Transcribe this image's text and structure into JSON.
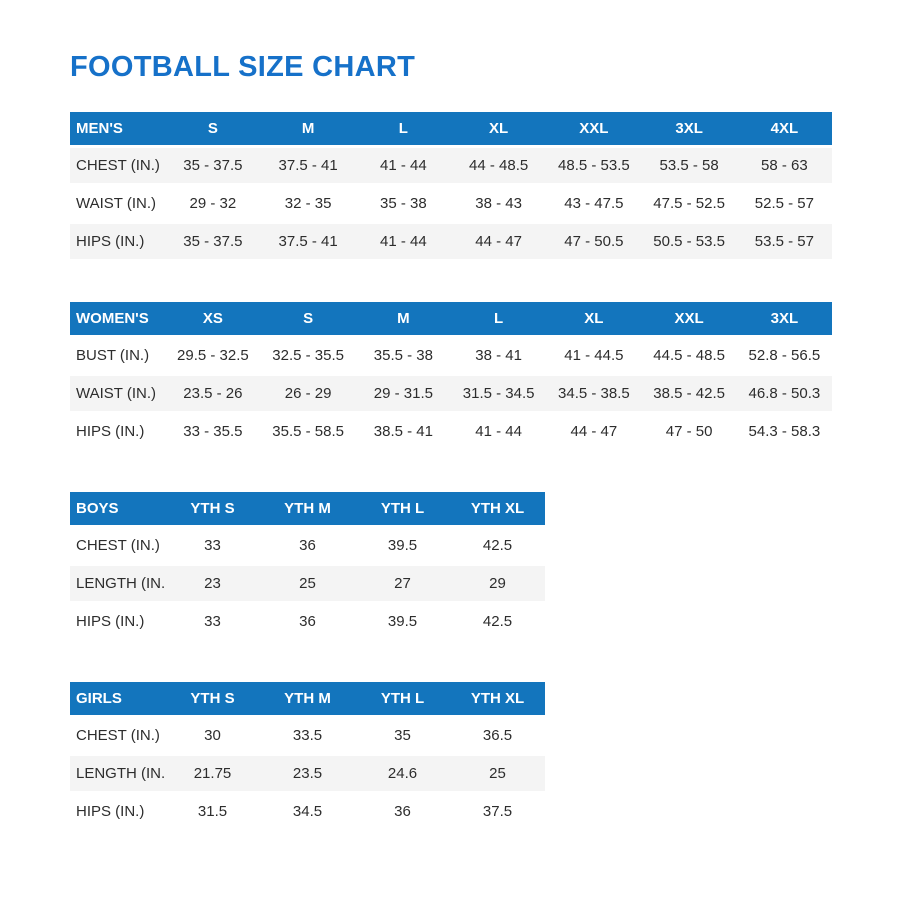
{
  "page_title": "FOOTBALL SIZE CHART",
  "colors": {
    "title_text": "#1671C9",
    "header_bg": "#1375BD",
    "header_text": "#FFFFFF",
    "row_stripe": "#F4F4F4",
    "body_text": "#2D2D2D"
  },
  "tables": [
    {
      "id": "mens",
      "wide": true,
      "zebra": "odd",
      "headers": [
        "MEN'S",
        "S",
        "M",
        "L",
        "XL",
        "XXL",
        "3XL",
        "4XL"
      ],
      "rows": [
        {
          "label": "CHEST (IN.)",
          "values": [
            "35 - 37.5",
            "37.5 - 41",
            "41 - 44",
            "44 - 48.5",
            "48.5 - 53.5",
            "53.5 - 58",
            "58 - 63"
          ]
        },
        {
          "label": "WAIST (IN.)",
          "values": [
            "29 - 32",
            "32 - 35",
            "35 - 38",
            "38 - 43",
            "43 - 47.5",
            "47.5 - 52.5",
            "52.5 - 57"
          ]
        },
        {
          "label": "HIPS (IN.)",
          "values": [
            "35 - 37.5",
            "37.5 - 41",
            "41 - 44",
            "44 - 47",
            "47 - 50.5",
            "50.5 - 53.5",
            "53.5 - 57"
          ]
        }
      ]
    },
    {
      "id": "womens",
      "wide": true,
      "zebra": "even",
      "headers": [
        "WOMEN'S",
        "XS",
        "S",
        "M",
        "L",
        "XL",
        "XXL",
        "3XL"
      ],
      "rows": [
        {
          "label": "BUST (IN.)",
          "values": [
            "29.5 - 32.5",
            "32.5 - 35.5",
            "35.5 - 38",
            "38 - 41",
            "41 - 44.5",
            "44.5 - 48.5",
            "52.8 - 56.5"
          ]
        },
        {
          "label": "WAIST (IN.)",
          "values": [
            "23.5 - 26",
            "26 - 29",
            "29 - 31.5",
            "31.5 - 34.5",
            "34.5 - 38.5",
            "38.5 - 42.5",
            "46.8 - 50.3"
          ]
        },
        {
          "label": "HIPS (IN.)",
          "values": [
            "33 - 35.5",
            "35.5 - 58.5",
            "38.5 - 41",
            "41 - 44",
            "44 - 47",
            "47 - 50",
            "54.3 - 58.3"
          ]
        }
      ]
    },
    {
      "id": "boys",
      "wide": false,
      "zebra": "even",
      "headers": [
        "BOYS",
        "YTH S",
        "YTH M",
        "YTH L",
        "YTH XL"
      ],
      "rows": [
        {
          "label": "CHEST (IN.)",
          "values": [
            "33",
            "36",
            "39.5",
            "42.5"
          ]
        },
        {
          "label": "LENGTH (IN.)",
          "values": [
            "23",
            "25",
            "27",
            "29"
          ]
        },
        {
          "label": "HIPS (IN.)",
          "values": [
            "33",
            "36",
            "39.5",
            "42.5"
          ]
        }
      ]
    },
    {
      "id": "girls",
      "wide": false,
      "zebra": "even",
      "headers": [
        "GIRLS",
        "YTH S",
        "YTH M",
        "YTH L",
        "YTH XL"
      ],
      "rows": [
        {
          "label": "CHEST (IN.)",
          "values": [
            "30",
            "33.5",
            "35",
            "36.5"
          ]
        },
        {
          "label": "LENGTH (IN.)",
          "values": [
            "21.75",
            "23.5",
            "24.6",
            "25"
          ]
        },
        {
          "label": "HIPS (IN.)",
          "values": [
            "31.5",
            "34.5",
            "36",
            "37.5"
          ]
        }
      ]
    }
  ]
}
